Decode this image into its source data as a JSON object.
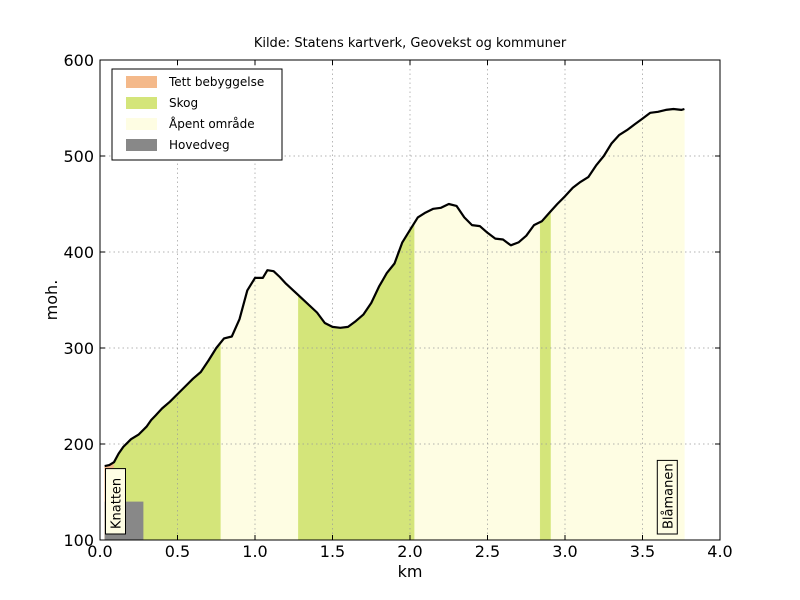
{
  "chart_data": {
    "type": "area",
    "title": "Kilde: Statens kartverk, Geovekst og kommuner",
    "xlabel": "km",
    "ylabel": "moh.",
    "xlim": [
      0.0,
      4.0
    ],
    "ylim": [
      100,
      600
    ],
    "xticks": [
      "0.0",
      "0.5",
      "1.0",
      "1.5",
      "2.0",
      "2.5",
      "3.0",
      "3.5",
      "4.0"
    ],
    "yticks": [
      "100",
      "200",
      "300",
      "400",
      "500",
      "600"
    ],
    "grid": true,
    "legend_placement": "top-left",
    "legend": [
      {
        "label": "Tett bebyggelse",
        "color": "#f4b98a"
      },
      {
        "label": "Skog",
        "color": "#d4e57a"
      },
      {
        "label": "Åpent område",
        "color": "#fefde3"
      },
      {
        "label": "Hovedveg",
        "color": "#888888"
      }
    ],
    "profile": {
      "x": [
        0.03,
        0.06,
        0.09,
        0.12,
        0.15,
        0.2,
        0.25,
        0.3,
        0.33,
        0.36,
        0.4,
        0.45,
        0.5,
        0.55,
        0.6,
        0.65,
        0.7,
        0.75,
        0.8,
        0.85,
        0.9,
        0.95,
        1.0,
        1.05,
        1.08,
        1.12,
        1.16,
        1.2,
        1.3,
        1.4,
        1.45,
        1.5,
        1.55,
        1.6,
        1.65,
        1.7,
        1.75,
        1.8,
        1.85,
        1.9,
        1.95,
        2.0,
        2.05,
        2.1,
        2.15,
        2.2,
        2.25,
        2.3,
        2.35,
        2.4,
        2.45,
        2.5,
        2.55,
        2.6,
        2.65,
        2.7,
        2.75,
        2.8,
        2.85,
        2.9,
        2.95,
        3.0,
        3.05,
        3.1,
        3.15,
        3.2,
        3.25,
        3.3,
        3.35,
        3.4,
        3.45,
        3.5,
        3.55,
        3.6,
        3.65,
        3.7,
        3.75,
        3.77
      ],
      "y": [
        177,
        178,
        181,
        190,
        197,
        205,
        210,
        218,
        225,
        230,
        237,
        244,
        252,
        260,
        268,
        275,
        287,
        300,
        310,
        312,
        330,
        360,
        373,
        373,
        381,
        380,
        374,
        367,
        352,
        337,
        326,
        322,
        321,
        322,
        328,
        335,
        347,
        364,
        378,
        388,
        410,
        423,
        436,
        441,
        445,
        446,
        450,
        448,
        436,
        428,
        427,
        420,
        414,
        413,
        407,
        410,
        417,
        428,
        432,
        441,
        450,
        458,
        467,
        473,
        478,
        490,
        500,
        513,
        522,
        527,
        533,
        539,
        545,
        546,
        548,
        549,
        548,
        549
      ]
    },
    "landcover": [
      {
        "type": "Tett bebyggelse",
        "from": 0.03,
        "to": 0.09
      },
      {
        "type": "Skog",
        "from": 0.09,
        "to": 0.78
      },
      {
        "type": "Åpent område",
        "from": 0.78,
        "to": 1.28
      },
      {
        "type": "Skog",
        "from": 1.28,
        "to": 2.03
      },
      {
        "type": "Åpent område",
        "from": 2.03,
        "to": 2.84
      },
      {
        "type": "Skog",
        "from": 2.84,
        "to": 2.91
      },
      {
        "type": "Åpent område",
        "from": 2.91,
        "to": 3.77
      }
    ],
    "roads": [
      {
        "type": "Hovedveg",
        "from": 0.03,
        "to": 0.28,
        "height": 140
      }
    ],
    "places": [
      {
        "name": "Knatten",
        "x": 0.1
      },
      {
        "name": "Blåmanen",
        "x": 3.66
      }
    ]
  }
}
